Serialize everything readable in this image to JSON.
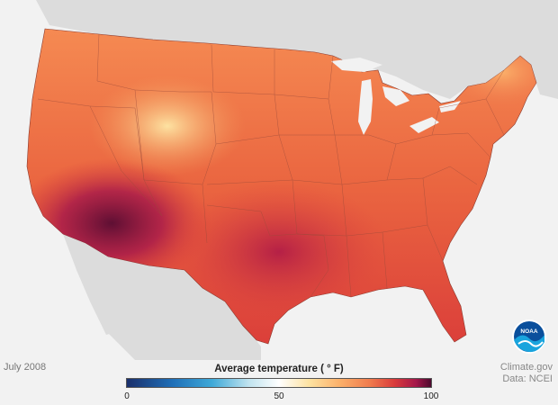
{
  "map": {
    "date_label": "July 2008",
    "legend": {
      "title": "Average temperature ( ° F)",
      "min_label": "0",
      "mid_label": "50",
      "max_label": "100",
      "scale_min": 0,
      "scale_max": 100,
      "scale_stops": [
        {
          "value": 0,
          "color": "#1a2f6b"
        },
        {
          "value": 15,
          "color": "#1f6fb8"
        },
        {
          "value": 28,
          "color": "#3fa9d8"
        },
        {
          "value": 40,
          "color": "#bfe3ef"
        },
        {
          "value": 50,
          "color": "#ffffff"
        },
        {
          "value": 60,
          "color": "#fde2a1"
        },
        {
          "value": 70,
          "color": "#fbb06a"
        },
        {
          "value": 80,
          "color": "#f07a4d"
        },
        {
          "value": 88,
          "color": "#d93b3b"
        },
        {
          "value": 95,
          "color": "#a5174a"
        },
        {
          "value": 100,
          "color": "#4d0a2e"
        }
      ]
    },
    "credit_line1": "Climate.gov",
    "credit_line2": "Data: NCEI",
    "logo_text": "NOAA",
    "colors": {
      "background": "#f2f2f2",
      "land_outside": "#dcdcdc",
      "state_borders": "#9a4a3a"
    }
  }
}
